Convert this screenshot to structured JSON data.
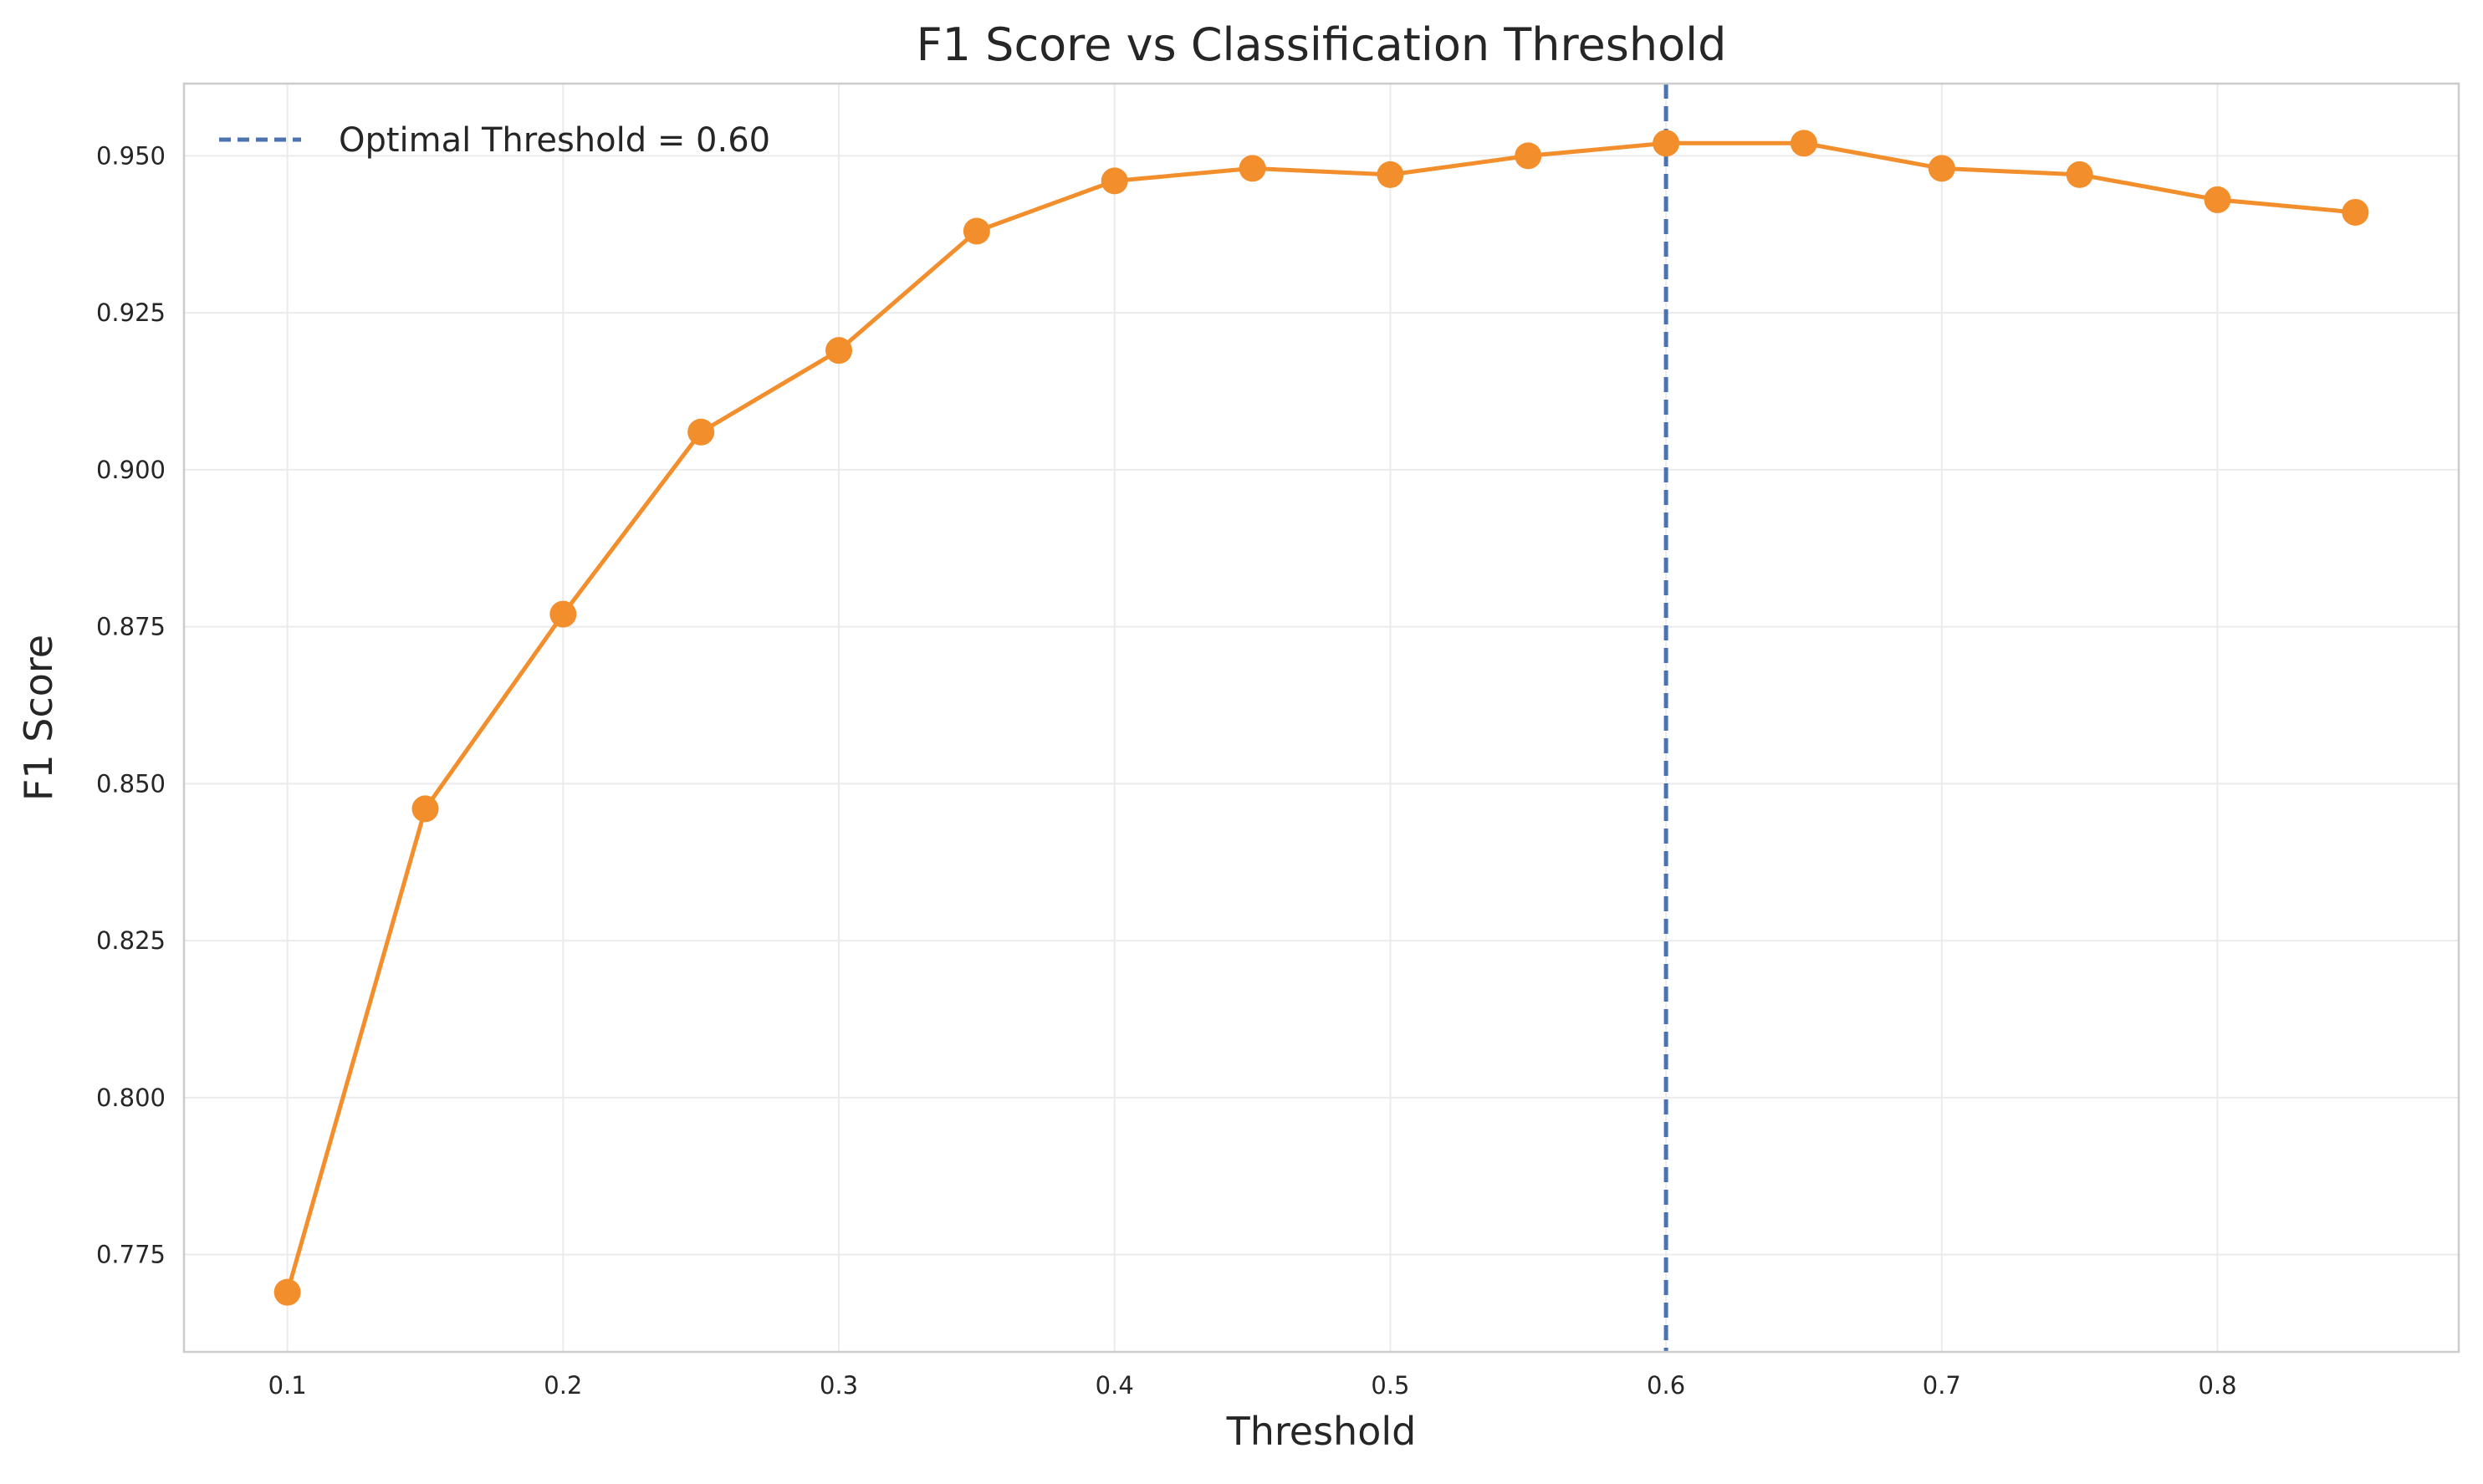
{
  "chart_data": {
    "type": "line",
    "title": "F1 Score vs Classification Threshold",
    "xlabel": "Threshold",
    "ylabel": "F1 Score",
    "xlim": [
      0.0625,
      0.8875
    ],
    "ylim": [
      0.7595,
      0.9615
    ],
    "x_ticks": [
      0.1,
      0.2,
      0.3,
      0.4,
      0.5,
      0.6,
      0.7,
      0.8
    ],
    "x_tick_labels": [
      "0.1",
      "0.2",
      "0.3",
      "0.4",
      "0.5",
      "0.6",
      "0.7",
      "0.8"
    ],
    "y_ticks": [
      0.775,
      0.8,
      0.825,
      0.85,
      0.875,
      0.9,
      0.925,
      0.95
    ],
    "y_tick_labels": [
      "0.775",
      "0.800",
      "0.825",
      "0.850",
      "0.875",
      "0.900",
      "0.925",
      "0.950"
    ],
    "grid": true,
    "legend_position": "top-left",
    "series": [
      {
        "name": "",
        "color": "#f28e2b",
        "marker": "circle",
        "x": [
          0.1,
          0.15,
          0.2,
          0.25,
          0.3,
          0.35,
          0.4,
          0.45,
          0.5,
          0.55,
          0.6,
          0.65,
          0.7,
          0.75,
          0.8,
          0.85
        ],
        "y": [
          0.769,
          0.846,
          0.877,
          0.906,
          0.919,
          0.938,
          0.946,
          0.948,
          0.947,
          0.95,
          0.952,
          0.952,
          0.948,
          0.947,
          0.943,
          0.941
        ]
      }
    ],
    "reference_lines": [
      {
        "orientation": "vertical",
        "x": 0.6,
        "style": "dashed",
        "color": "#4c72b0",
        "label": "Optimal Threshold = 0.60"
      }
    ]
  }
}
